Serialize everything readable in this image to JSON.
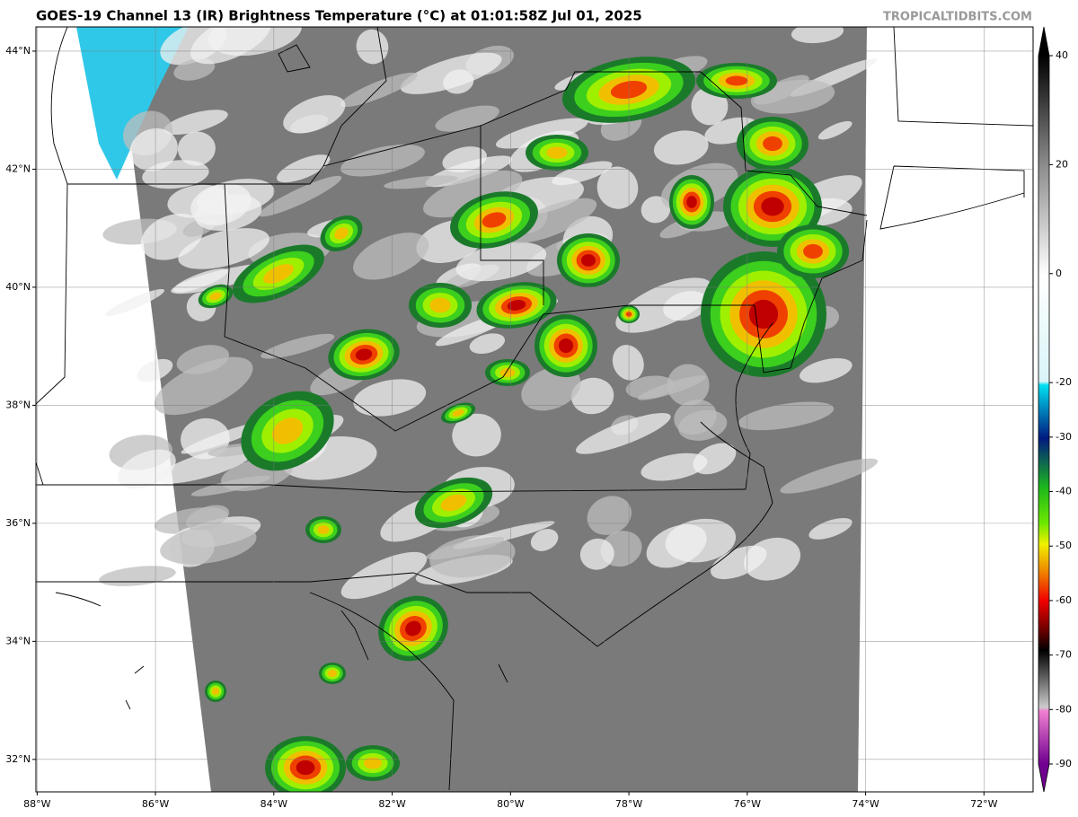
{
  "header": {
    "title": "GOES-19 Channel 13 (IR) Brightness Temperature (°C) at 01:01:58Z Jul 01, 2025",
    "credit": "TROPICALTIDBITS.COM"
  },
  "map": {
    "xlim": [
      -88.02,
      -71.17
    ],
    "ylim": [
      31.45,
      44.41
    ],
    "lon_ticks": [
      {
        "value": -88,
        "label": "88°W"
      },
      {
        "value": -86,
        "label": "86°W"
      },
      {
        "value": -84,
        "label": "84°W"
      },
      {
        "value": -82,
        "label": "82°W"
      },
      {
        "value": -80,
        "label": "80°W"
      },
      {
        "value": -78,
        "label": "78°W"
      },
      {
        "value": -76,
        "label": "76°W"
      },
      {
        "value": -74,
        "label": "74°W"
      },
      {
        "value": -72,
        "label": "72°W"
      }
    ],
    "lat_ticks": [
      {
        "value": 44,
        "label": "44°N"
      },
      {
        "value": 42,
        "label": "42°N"
      },
      {
        "value": 40,
        "label": "40°N"
      },
      {
        "value": 38,
        "label": "38°N"
      },
      {
        "value": 36,
        "label": "36°N"
      },
      {
        "value": 34,
        "label": "34°N"
      },
      {
        "value": 32,
        "label": "32°N"
      }
    ]
  },
  "colorbar": {
    "lim": [
      -90,
      40
    ],
    "ticks": [
      40,
      20,
      0,
      -20,
      -30,
      -40,
      -50,
      -60,
      -70,
      -80,
      -90
    ]
  }
}
